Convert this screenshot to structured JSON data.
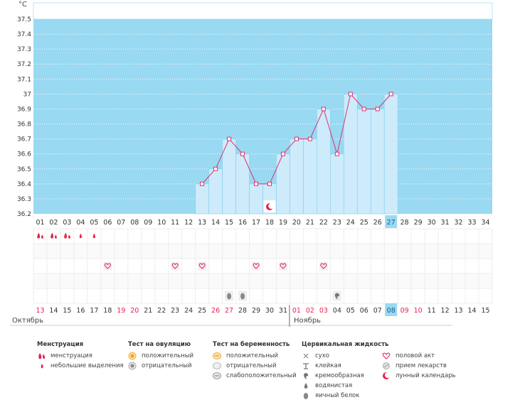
{
  "chart_data": {
    "type": "line",
    "title": "",
    "ylabel": "°C",
    "xlabel": "",
    "ylim": [
      36.2,
      37.55
    ],
    "y_ticks": [
      "37.5",
      "37.4",
      "37.3",
      "37.2",
      "37.1",
      "37",
      "36.9",
      "36.8",
      "36.7",
      "36.6",
      "36.5",
      "36.4",
      "36.3",
      "36.2"
    ],
    "cycle_days": [
      "01",
      "02",
      "03",
      "04",
      "05",
      "06",
      "07",
      "08",
      "09",
      "10",
      "11",
      "12",
      "13",
      "14",
      "15",
      "16",
      "17",
      "18",
      "19",
      "20",
      "21",
      "22",
      "23",
      "24",
      "25",
      "26",
      "27",
      "28",
      "29",
      "30",
      "31",
      "32",
      "33",
      "34"
    ],
    "today_index": 26,
    "series": [
      {
        "name": "temperature",
        "points": [
          {
            "day": "13",
            "value": 36.4
          },
          {
            "day": "14",
            "value": 36.5
          },
          {
            "day": "15",
            "value": 36.7
          },
          {
            "day": "16",
            "value": 36.6
          },
          {
            "day": "17",
            "value": 36.4
          },
          {
            "day": "18",
            "value": 36.4
          },
          {
            "day": "19",
            "value": 36.6
          },
          {
            "day": "20",
            "value": 36.7
          },
          {
            "day": "21",
            "value": 36.7
          },
          {
            "day": "22",
            "value": 36.9
          },
          {
            "day": "23",
            "value": 36.6
          },
          {
            "day": "24",
            "value": 37.0
          },
          {
            "day": "25",
            "value": 36.9
          },
          {
            "day": "26",
            "value": 36.9
          },
          {
            "day": "27",
            "value": 37.0
          }
        ]
      }
    ],
    "calendar_dates": [
      {
        "d": "13",
        "red": true
      },
      {
        "d": "14",
        "red": false
      },
      {
        "d": "15",
        "red": false
      },
      {
        "d": "16",
        "red": false
      },
      {
        "d": "17",
        "red": false
      },
      {
        "d": "18",
        "red": false
      },
      {
        "d": "19",
        "red": true
      },
      {
        "d": "20",
        "red": true
      },
      {
        "d": "21",
        "red": false
      },
      {
        "d": "22",
        "red": false
      },
      {
        "d": "23",
        "red": false
      },
      {
        "d": "24",
        "red": false
      },
      {
        "d": "25",
        "red": false
      },
      {
        "d": "26",
        "red": true
      },
      {
        "d": "27",
        "red": true
      },
      {
        "d": "28",
        "red": false
      },
      {
        "d": "29",
        "red": false
      },
      {
        "d": "30",
        "red": false
      },
      {
        "d": "31",
        "red": false
      },
      {
        "d": "01",
        "red": true
      },
      {
        "d": "02",
        "red": true
      },
      {
        "d": "03",
        "red": true
      },
      {
        "d": "04",
        "red": false
      },
      {
        "d": "05",
        "red": false
      },
      {
        "d": "06",
        "red": false
      },
      {
        "d": "07",
        "red": false
      },
      {
        "d": "08",
        "red": false
      },
      {
        "d": "09",
        "red": true
      },
      {
        "d": "10",
        "red": true
      },
      {
        "d": "11",
        "red": false
      },
      {
        "d": "12",
        "red": false
      },
      {
        "d": "13",
        "red": false
      },
      {
        "d": "14",
        "red": false
      },
      {
        "d": "15",
        "red": false
      }
    ],
    "markers": [
      {
        "row": 0,
        "day_index": 0,
        "icon": "menstruation-icon"
      },
      {
        "row": 0,
        "day_index": 1,
        "icon": "menstruation-icon"
      },
      {
        "row": 0,
        "day_index": 2,
        "icon": "menstruation-icon"
      },
      {
        "row": 0,
        "day_index": 3,
        "icon": "light-spotting-icon"
      },
      {
        "row": 0,
        "day_index": 4,
        "icon": "light-spotting-icon"
      },
      {
        "row": 2,
        "day_index": 5,
        "icon": "intercourse-heart-icon"
      },
      {
        "row": 2,
        "day_index": 10,
        "icon": "intercourse-heart-icon"
      },
      {
        "row": 2,
        "day_index": 12,
        "icon": "intercourse-heart-icon"
      },
      {
        "row": 2,
        "day_index": 16,
        "icon": "intercourse-heart-icon"
      },
      {
        "row": 2,
        "day_index": 18,
        "icon": "intercourse-heart-icon"
      },
      {
        "row": 2,
        "day_index": 21,
        "icon": "intercourse-heart-icon"
      },
      {
        "row": 4,
        "day_index": 14,
        "icon": "egg-white-drop-icon"
      },
      {
        "row": 4,
        "day_index": 15,
        "icon": "egg-white-drop-icon"
      },
      {
        "row": 4,
        "day_index": 22,
        "icon": "creamy-fluid-icon"
      }
    ],
    "moon_day_index": 17
  },
  "months": {
    "first": "Октябрь",
    "second": "Ноябрь"
  },
  "legend": {
    "menstruation": {
      "title": "Менструация",
      "items": [
        "менструация",
        "небольшие выделения"
      ]
    },
    "ovulation_test": {
      "title": "Тест на овуляцию",
      "items": [
        "положительный",
        "отрицательный"
      ]
    },
    "pregnancy_test": {
      "title": "Тест на беременность",
      "items": [
        "положительный",
        "отрицательный",
        "слабоположительный"
      ]
    },
    "cervical_fluid": {
      "title": "Цервикальная жидкость",
      "items": [
        "сухо",
        "клейкая",
        "кремообразная",
        "водянистая",
        "яичный белок"
      ]
    },
    "other": {
      "items": [
        "половой акт",
        "прием лекарств",
        "лунный календарь"
      ]
    }
  },
  "colors": {
    "plot_bg": "#99d9f2",
    "bar_fill": "#cdebfb",
    "bar_stroke": "#8fd0ee",
    "line": "#e0316d",
    "today_bg": "#99d9f2",
    "accent_red": "#e8224f"
  }
}
